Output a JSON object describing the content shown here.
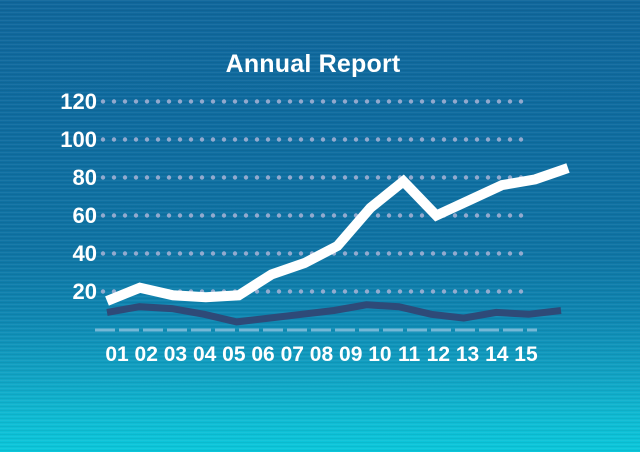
{
  "chart_data": {
    "type": "line",
    "title": "Annual Report",
    "categories": [
      "01",
      "02",
      "03",
      "04",
      "05",
      "06",
      "07",
      "08",
      "09",
      "10",
      "11",
      "12",
      "13",
      "14",
      "15"
    ],
    "y_ticks": [
      120,
      100,
      80,
      60,
      40,
      20
    ],
    "ylim": [
      0,
      130
    ],
    "xlabel": "",
    "ylabel": "",
    "legend_position": "none",
    "grid": {
      "style": "dotted-horizontal-rows",
      "dot_color": "#a9b4d6"
    },
    "axis_baseline": {
      "style": "dashed",
      "color": "#8ec3e0"
    },
    "series": [
      {
        "name": "main-trend-white",
        "color": "#ffffff",
        "values": [
          15,
          22,
          18,
          17,
          18,
          29,
          35,
          44,
          64,
          78,
          60,
          68,
          76,
          79,
          85
        ]
      },
      {
        "name": "secondary-trend-navy",
        "color": "#2e4a78",
        "values": [
          9,
          12,
          11,
          8,
          4,
          6,
          8,
          10,
          13,
          12,
          8,
          6,
          9,
          8,
          10
        ]
      }
    ]
  },
  "colors": {
    "background_top": "#10679c",
    "background_bottom": "#0bc7db",
    "text": "#ffffff"
  }
}
